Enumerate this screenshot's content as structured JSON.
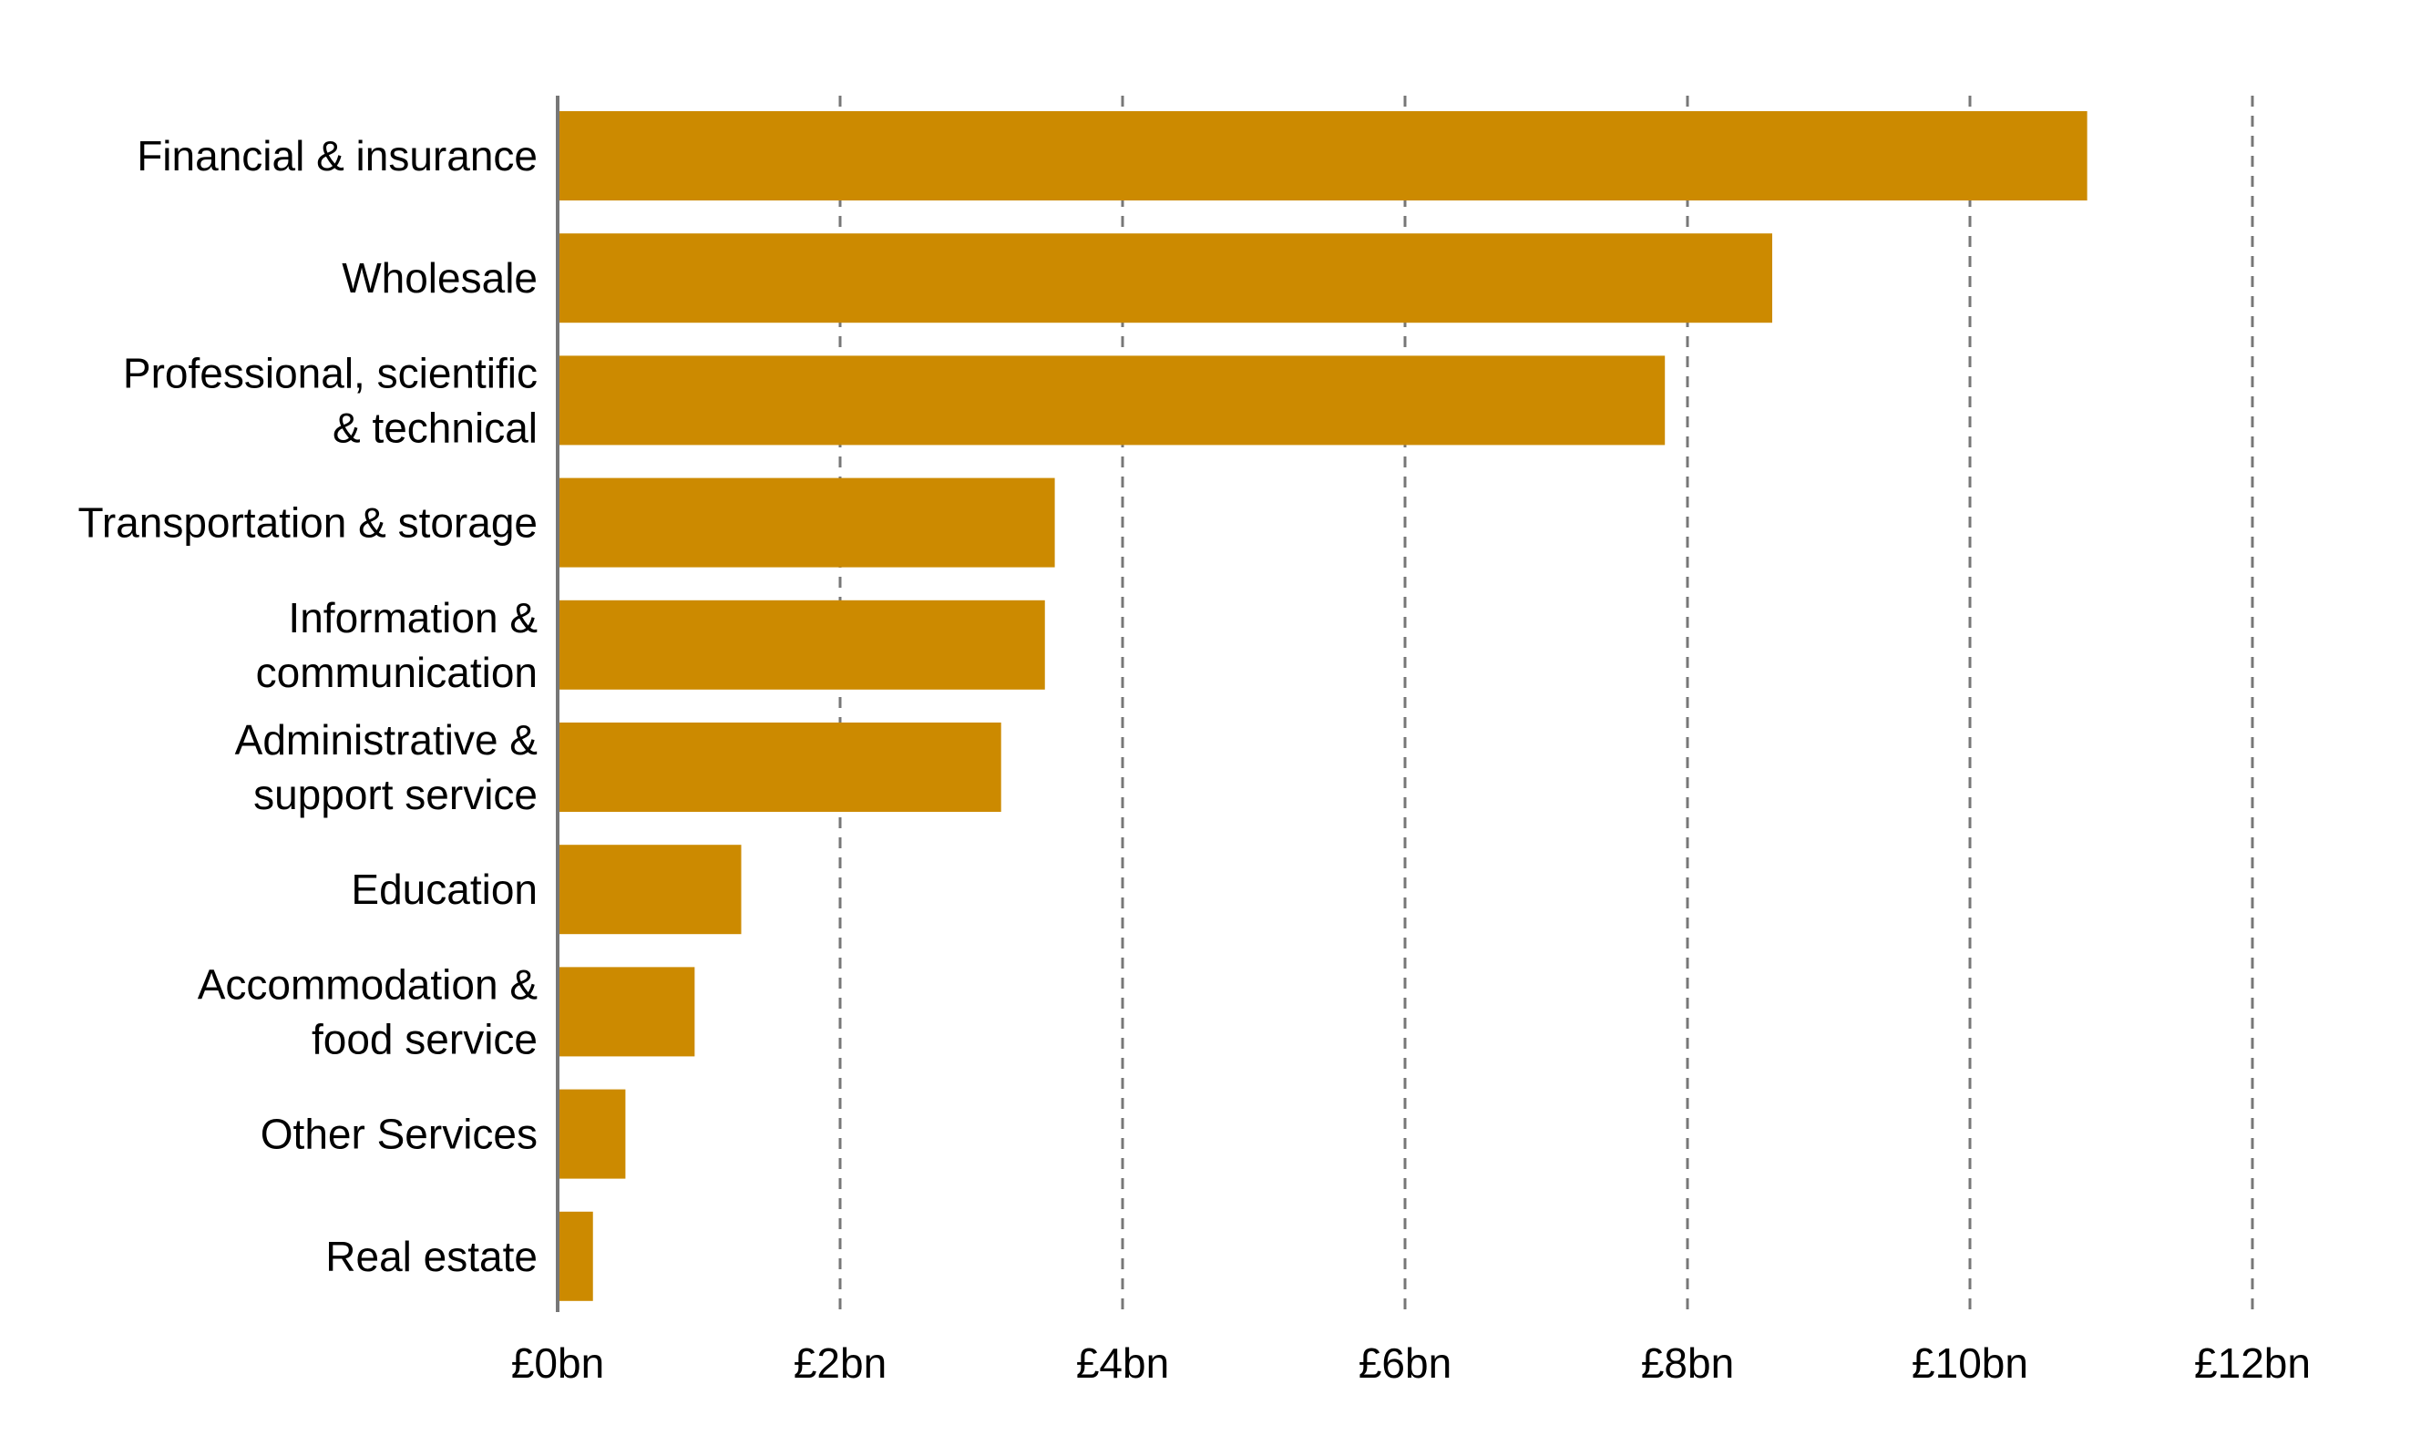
{
  "chart_data": {
    "type": "bar",
    "orientation": "horizontal",
    "title": "",
    "xlabel": "",
    "ylabel": "",
    "unit_prefix": "£",
    "unit_suffix": "bn",
    "xlim": [
      0,
      12
    ],
    "xticks": [
      0,
      2,
      4,
      6,
      8,
      10,
      12
    ],
    "tick_labels": [
      "£0bn",
      "£2bn",
      "£4bn",
      "£6bn",
      "£8bn",
      "£10bn",
      "£12bn"
    ],
    "grid": true,
    "bar_color": "#CC8A00",
    "grid_color": "#777777",
    "categories": [
      [
        "Financial & insurance"
      ],
      [
        "Wholesale"
      ],
      [
        "Professional, scientific",
        "& technical"
      ],
      [
        "Transportation & storage"
      ],
      [
        "Information &",
        "communication"
      ],
      [
        "Administrative &",
        "support service"
      ],
      [
        "Education"
      ],
      [
        "Accommodation &",
        "food service"
      ],
      [
        "Other Services"
      ],
      [
        "Real estate"
      ]
    ],
    "values": [
      10.83,
      8.6,
      7.84,
      3.52,
      3.45,
      3.14,
      1.3,
      0.97,
      0.48,
      0.25
    ]
  }
}
